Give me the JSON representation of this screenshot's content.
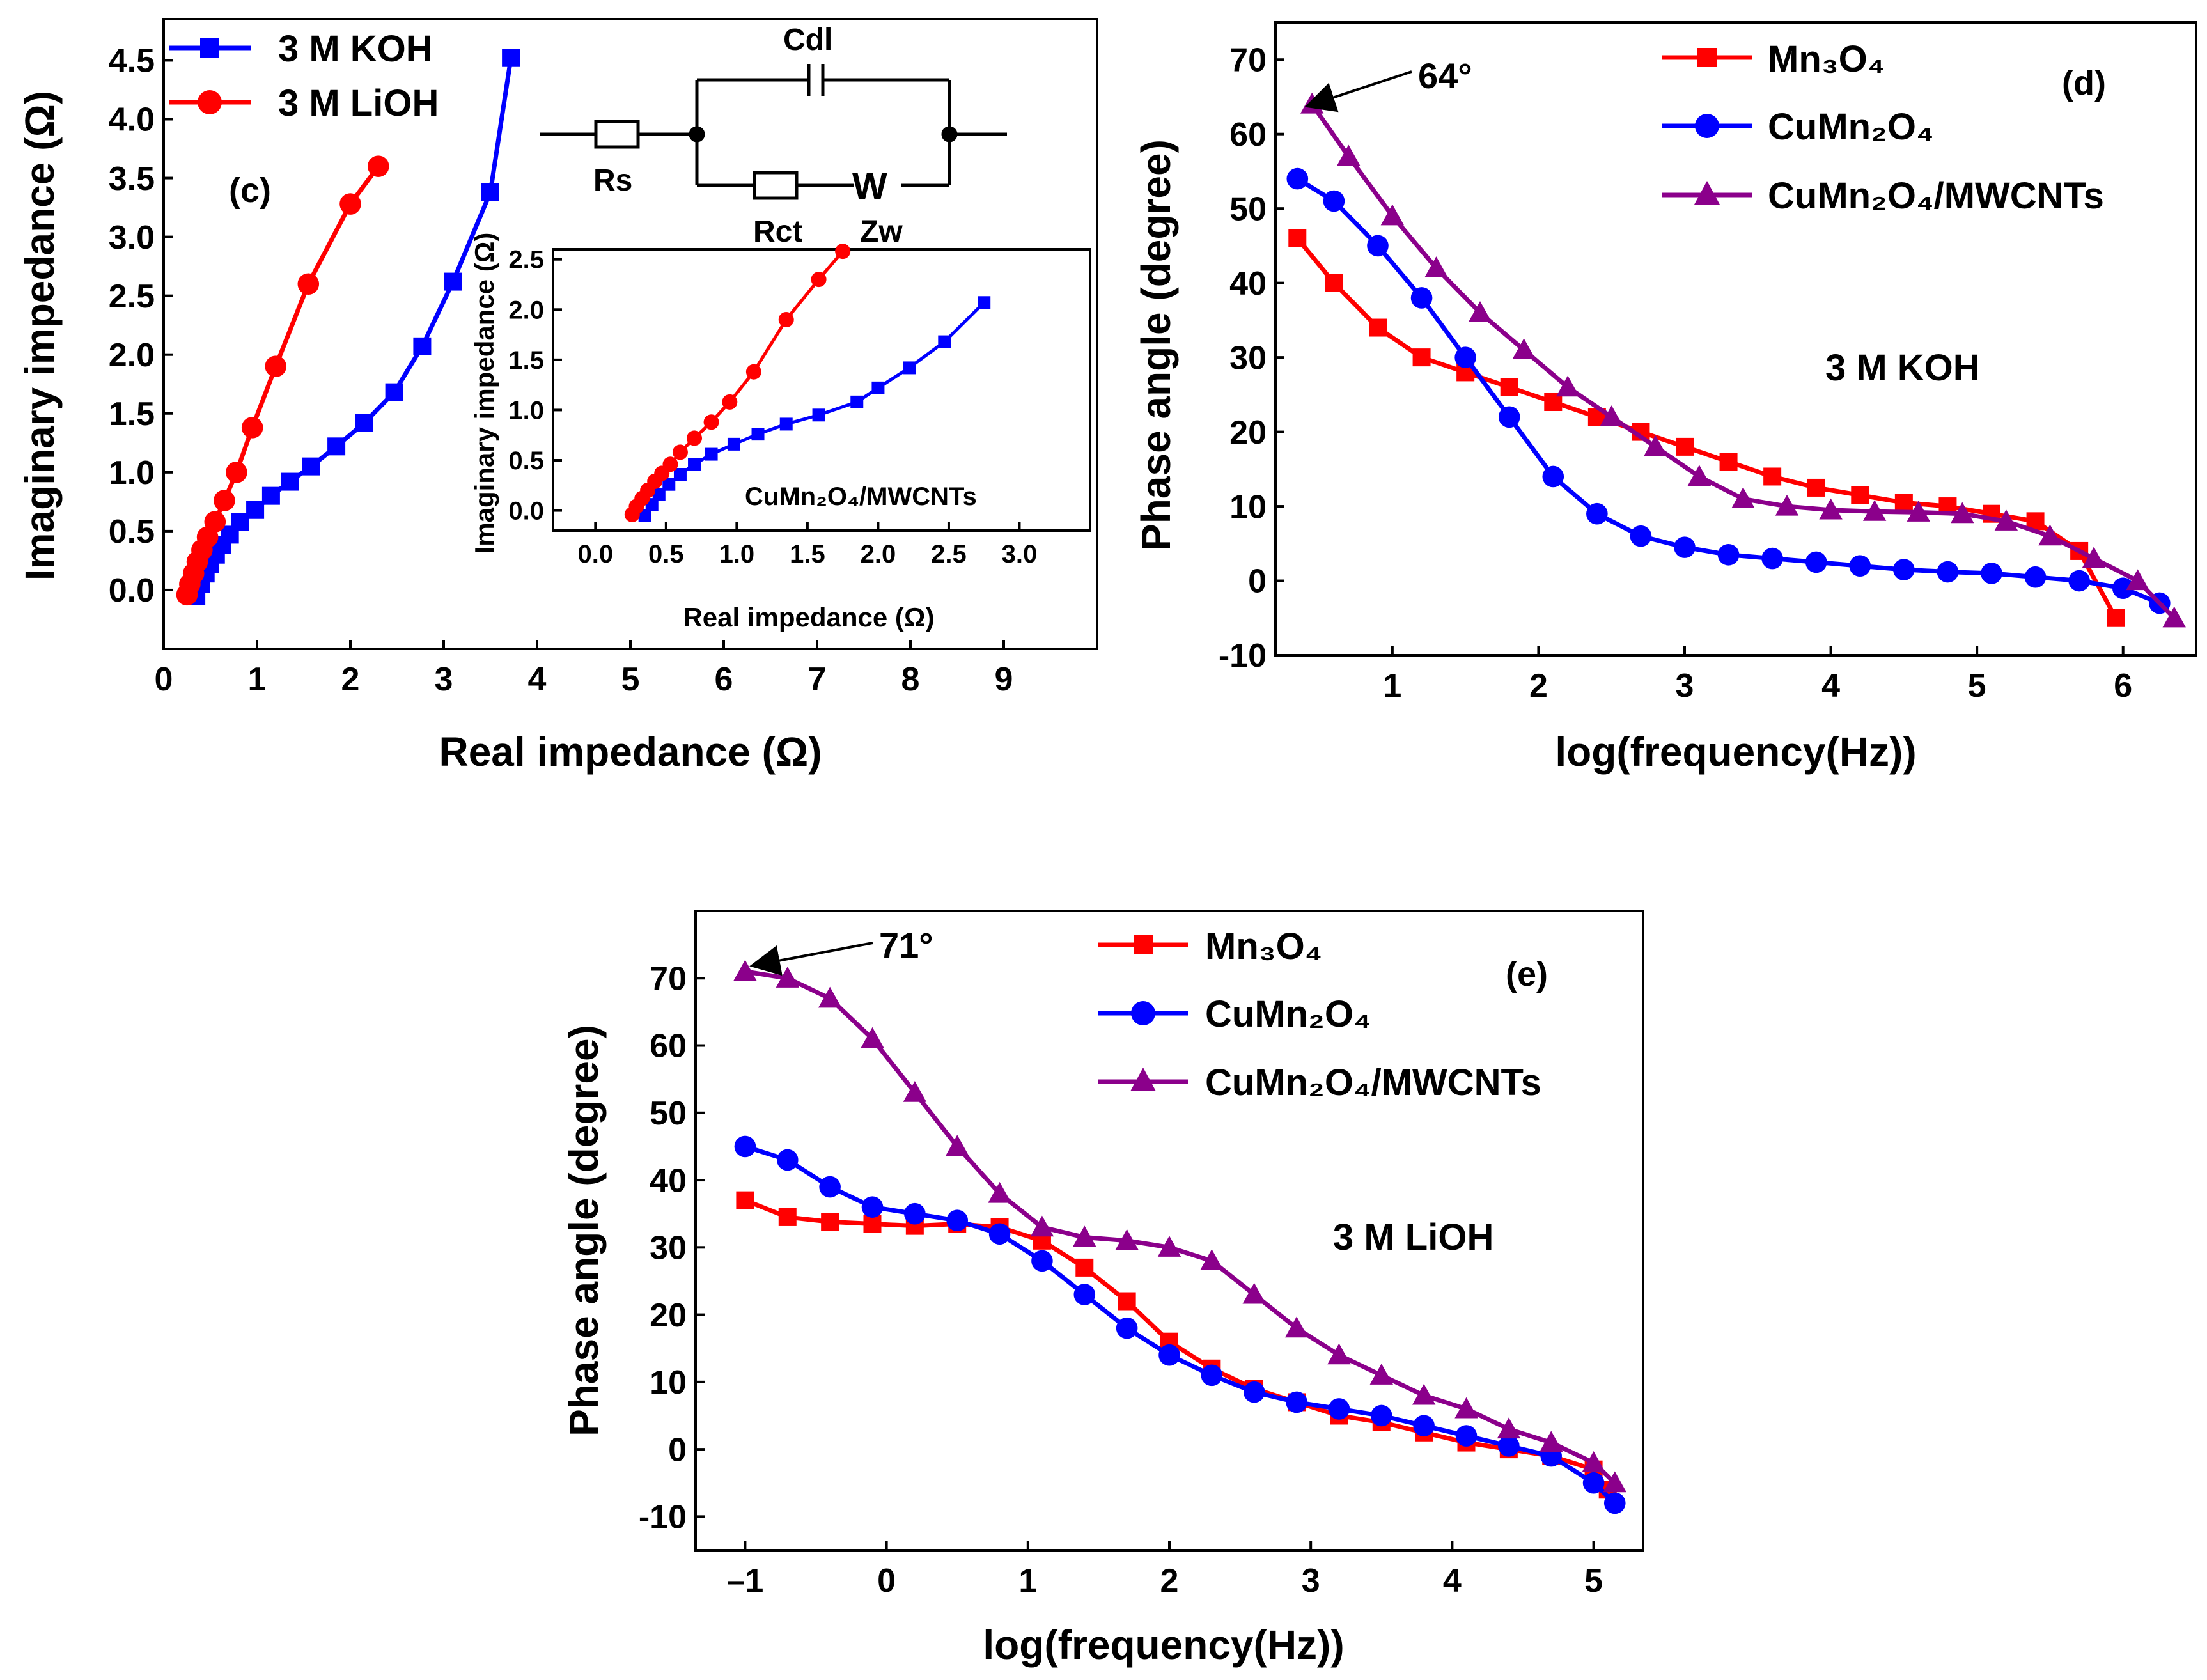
{
  "colors": {
    "red": "#ff0000",
    "blue": "#0000ff",
    "purple": "#8b008b",
    "axis": "#000000"
  },
  "chart_data": [
    {
      "id": "c",
      "type": "line",
      "panel_label": "(c)",
      "xlabel": "Real impedance (Ω)",
      "ylabel": "Imaginary impedance (Ω)",
      "xlim": [
        0,
        10
      ],
      "ylim": [
        -0.5,
        4.85
      ],
      "xticks": [
        "0",
        "1",
        "2",
        "3",
        "4",
        "5",
        "6",
        "7",
        "8",
        "9"
      ],
      "yticks": [
        "0.0",
        "0.5",
        "1.0",
        "1.5",
        "2.0",
        "2.5",
        "3.0",
        "3.5",
        "4.0",
        "4.5"
      ],
      "legend": {
        "position": "top-left",
        "entries": [
          "3 M KOH",
          "3 M LiOH"
        ]
      },
      "series": [
        {
          "name": "3 M KOH",
          "color": "#0000ff",
          "marker": "square",
          "x": [
            0.35,
            0.4,
            0.45,
            0.5,
            0.56,
            0.63,
            0.71,
            0.82,
            0.98,
            1.15,
            1.35,
            1.58,
            1.85,
            2.15,
            2.47,
            2.77,
            3.1,
            3.5,
            3.72
          ],
          "y": [
            -0.05,
            0.05,
            0.14,
            0.22,
            0.3,
            0.38,
            0.47,
            0.58,
            0.68,
            0.8,
            0.92,
            1.05,
            1.22,
            1.42,
            1.68,
            2.07,
            2.62,
            3.38,
            4.52
          ]
        },
        {
          "name": "3 M LiOH",
          "color": "#ff0000",
          "marker": "circle",
          "x": [
            0.25,
            0.28,
            0.32,
            0.36,
            0.41,
            0.47,
            0.55,
            0.65,
            0.78,
            0.95,
            1.2,
            1.55,
            2.0,
            2.3
          ],
          "y": [
            -0.04,
            0.05,
            0.14,
            0.24,
            0.34,
            0.45,
            0.58,
            0.76,
            1.0,
            1.38,
            1.9,
            2.6,
            3.28,
            3.6
          ]
        }
      ],
      "inset": {
        "type": "line",
        "title": "CuMn₂O₄/MWCNTs",
        "xlabel": "Real impedance (Ω)",
        "ylabel": "Imaginary impedance (Ω)",
        "xlim": [
          -0.3,
          3.5
        ],
        "ylim": [
          -0.2,
          2.6
        ],
        "xticks": [
          "0.0",
          "0.5",
          "1.0",
          "1.5",
          "2.0",
          "2.5",
          "3.0"
        ],
        "yticks": [
          "0.0",
          "0.5",
          "1.0",
          "1.5",
          "2.0",
          "2.5"
        ],
        "series": [
          {
            "name": "3 M KOH",
            "color": "#0000ff",
            "marker": "square",
            "x": [
              0.35,
              0.4,
              0.45,
              0.52,
              0.6,
              0.7,
              0.82,
              0.98,
              1.15,
              1.35,
              1.58,
              1.85,
              2.0,
              2.22,
              2.47,
              2.75
            ],
            "y": [
              -0.05,
              0.06,
              0.16,
              0.26,
              0.36,
              0.46,
              0.56,
              0.66,
              0.76,
              0.86,
              0.95,
              1.08,
              1.22,
              1.42,
              1.68,
              2.07
            ]
          },
          {
            "name": "3 M LiOH",
            "color": "#ff0000",
            "marker": "circle",
            "x": [
              0.26,
              0.29,
              0.33,
              0.37,
              0.42,
              0.47,
              0.53,
              0.6,
              0.7,
              0.82,
              0.95,
              1.12,
              1.35,
              1.58,
              1.75
            ],
            "y": [
              -0.04,
              0.04,
              0.12,
              0.2,
              0.29,
              0.37,
              0.46,
              0.58,
              0.72,
              0.88,
              1.08,
              1.38,
              1.9,
              2.3,
              2.58
            ]
          }
        ]
      },
      "circuit": {
        "labels": [
          "Cdl",
          "Rs",
          "Rct",
          "W",
          "Zw"
        ]
      }
    },
    {
      "id": "d",
      "type": "line",
      "panel_label": "(d)",
      "annotation": "3 M KOH",
      "peak_label": "64°",
      "xlabel": "log(frequency(Hz))",
      "ylabel": "Phase angle (degree)",
      "xlim": [
        0.2,
        6.5
      ],
      "ylim": [
        -10,
        75
      ],
      "xticks": [
        "1",
        "2",
        "3",
        "4",
        "5",
        "6"
      ],
      "yticks": [
        "-10",
        "0",
        "10",
        "20",
        "30",
        "40",
        "50",
        "60",
        "70"
      ],
      "legend": {
        "position": "top-right",
        "entries": [
          "Mn₃O₄",
          "CuMn₂O₄",
          "CuMn₂O₄/MWCNTs"
        ]
      },
      "series": [
        {
          "name": "Mn₃O₄",
          "color": "#ff0000",
          "marker": "square",
          "x": [
            0.35,
            0.6,
            0.9,
            1.2,
            1.5,
            1.8,
            2.1,
            2.4,
            2.7,
            3.0,
            3.3,
            3.6,
            3.9,
            4.2,
            4.5,
            4.8,
            5.1,
            5.4,
            5.7,
            5.95
          ],
          "y": [
            46,
            40,
            34,
            30,
            28,
            26,
            24,
            22,
            20,
            18,
            16,
            14,
            12.5,
            11.5,
            10.5,
            10,
            9,
            8,
            4,
            -5
          ]
        },
        {
          "name": "CuMn₂O₄",
          "color": "#0000ff",
          "marker": "circle",
          "x": [
            0.35,
            0.6,
            0.9,
            1.2,
            1.5,
            1.8,
            2.1,
            2.4,
            2.7,
            3.0,
            3.3,
            3.6,
            3.9,
            4.2,
            4.5,
            4.8,
            5.1,
            5.4,
            5.7,
            6.0,
            6.25
          ],
          "y": [
            54,
            51,
            45,
            38,
            30,
            22,
            14,
            9,
            6,
            4.5,
            3.5,
            3,
            2.5,
            2,
            1.5,
            1.2,
            1,
            0.5,
            0,
            -1,
            -3
          ]
        },
        {
          "name": "CuMn₂O₄/MWCNTs",
          "color": "#8b008b",
          "marker": "triangle",
          "x": [
            0.45,
            0.7,
            1.0,
            1.3,
            1.6,
            1.9,
            2.2,
            2.5,
            2.8,
            3.1,
            3.4,
            3.7,
            4.0,
            4.3,
            4.6,
            4.9,
            5.2,
            5.5,
            5.8,
            6.1,
            6.35
          ],
          "y": [
            64,
            57,
            49,
            42,
            36,
            31,
            26,
            22,
            18,
            14,
            11,
            10,
            9.5,
            9.3,
            9.2,
            9,
            8,
            6,
            3,
            0,
            -5
          ]
        }
      ]
    },
    {
      "id": "e",
      "type": "line",
      "panel_label": "(e)",
      "annotation": "3 M LiOH",
      "peak_label": "71°",
      "xlabel": "log(frequency(Hz))",
      "ylabel": "Phase angle (degree)",
      "xlim": [
        -1.35,
        5.35
      ],
      "ylim": [
        -15,
        80
      ],
      "xticks": [
        "–1",
        "0",
        "1",
        "2",
        "3",
        "4",
        "5"
      ],
      "yticks": [
        "-10",
        "0",
        "10",
        "20",
        "30",
        "40",
        "50",
        "60",
        "70"
      ],
      "legend": {
        "position": "top-right",
        "entries": [
          "Mn₃O₄",
          "CuMn₂O₄",
          "CuMn₂O₄/MWCNTs"
        ]
      },
      "series": [
        {
          "name": "Mn₃O₄",
          "color": "#ff0000",
          "marker": "square",
          "x": [
            -1,
            -0.7,
            -0.4,
            -0.1,
            0.2,
            0.5,
            0.8,
            1.1,
            1.4,
            1.7,
            2.0,
            2.3,
            2.6,
            2.9,
            3.2,
            3.5,
            3.8,
            4.1,
            4.4,
            4.7,
            5.0,
            5.1
          ],
          "y": [
            37,
            34.5,
            33.8,
            33.5,
            33.2,
            33.5,
            33,
            31,
            27,
            22,
            16,
            12,
            9,
            7,
            5,
            4,
            2.5,
            1,
            0,
            -1,
            -3,
            -6
          ]
        },
        {
          "name": "CuMn₂O₄",
          "color": "#0000ff",
          "marker": "circle",
          "x": [
            -1,
            -0.7,
            -0.4,
            -0.1,
            0.2,
            0.5,
            0.8,
            1.1,
            1.4,
            1.7,
            2.0,
            2.3,
            2.6,
            2.9,
            3.2,
            3.5,
            3.8,
            4.1,
            4.4,
            4.7,
            5.0,
            5.15
          ],
          "y": [
            45,
            43,
            39,
            36,
            35,
            34,
            32,
            28,
            23,
            18,
            14,
            11,
            8.5,
            7,
            6,
            5,
            3.5,
            2,
            0.5,
            -1,
            -5,
            -8
          ]
        },
        {
          "name": "CuMn₂O₄/MWCNTs",
          "color": "#8b008b",
          "marker": "triangle",
          "x": [
            -1,
            -0.7,
            -0.4,
            -0.1,
            0.2,
            0.5,
            0.8,
            1.1,
            1.4,
            1.7,
            2.0,
            2.3,
            2.6,
            2.9,
            3.2,
            3.5,
            3.8,
            4.1,
            4.4,
            4.7,
            5.0,
            5.15
          ],
          "y": [
            71,
            70,
            67,
            61,
            53,
            45,
            38,
            33,
            31.5,
            31,
            30,
            28,
            23,
            18,
            14,
            11,
            8,
            6,
            3,
            1,
            -2,
            -5
          ]
        }
      ]
    }
  ]
}
